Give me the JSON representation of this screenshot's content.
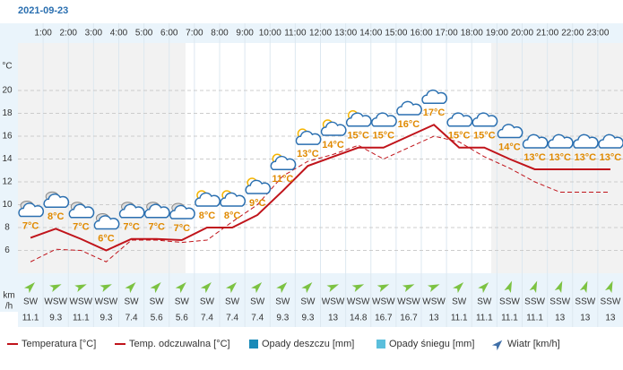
{
  "chart_data": {
    "type": "line",
    "date": "2021-09-23",
    "hour_labels": [
      "1:00",
      "2:00",
      "3:00",
      "4:00",
      "5:00",
      "6:00",
      "7:00",
      "8:00",
      "9:00",
      "10:00",
      "11:00",
      "12:00",
      "13:00",
      "14:00",
      "15:00",
      "16:00",
      "17:00",
      "18:00",
      "19:00",
      "20:00",
      "21:00",
      "22:00",
      "23:00"
    ],
    "ylabel": "°C",
    "ylim": [
      4,
      24
    ],
    "yticks": [
      6,
      8,
      10,
      12,
      14,
      16,
      18,
      20
    ],
    "grid": true,
    "series": [
      {
        "name": "Temperatura [°C]",
        "color": "#c0141b",
        "values": [
          7.1,
          7.9,
          7.0,
          6.0,
          7.0,
          7.0,
          6.9,
          8.0,
          8.0,
          9.1,
          11.2,
          13.4,
          14.2,
          15.0,
          15.0,
          16.0,
          17.0,
          15.0,
          15.0,
          14.0,
          13.1,
          13.1,
          13.1,
          13.1
        ],
        "value_labels": [
          "7°C",
          "8°C",
          "7°C",
          "6°C",
          "7°C",
          "7°C",
          "7°C",
          "8°C",
          "8°C",
          "9°C",
          "11°C",
          "13°C",
          "14°C",
          "15°C",
          "15°C",
          "16°C",
          "17°C",
          "15°C",
          "15°C",
          "14°C",
          "13°C",
          "13°C",
          "13°C",
          "13°C"
        ]
      },
      {
        "name": "Temp. odczuwalna [°C]",
        "color": "#c0141b",
        "dashed": true,
        "values": [
          5.0,
          6.1,
          6.0,
          5.0,
          6.9,
          6.9,
          6.7,
          6.9,
          8.5,
          10.0,
          12.5,
          13.8,
          14.4,
          15.2,
          14.0,
          15.0,
          16.0,
          15.5,
          14.2,
          13.2,
          12.0,
          11.1,
          11.1,
          11.1
        ]
      }
    ],
    "extra_legend": [
      {
        "name": "Opady deszczu [mm]",
        "color": "#1a8ab8"
      },
      {
        "name": "Opady śniegu [mm]",
        "color": "#5bbfdc"
      }
    ],
    "wind": {
      "name": "Wiatr [km/h]",
      "unit": [
        "km",
        "/h"
      ],
      "color": "#3f6fa8",
      "directions": [
        "SW",
        "WSW",
        "WSW",
        "WSW",
        "SW",
        "SW",
        "SW",
        "SW",
        "SW",
        "SW",
        "SW",
        "SW",
        "WSW",
        "WSW",
        "WSW",
        "WSW",
        "WSW",
        "SW",
        "SW",
        "SSW",
        "SSW",
        "SSW",
        "SSW",
        "SSW"
      ],
      "speeds": [
        11.1,
        9.3,
        11.1,
        9.3,
        7.4,
        5.6,
        5.6,
        7.4,
        7.4,
        7.4,
        9.3,
        9.3,
        13,
        14.8,
        16.7,
        16.7,
        13,
        11.1,
        11.1,
        11.1,
        11.1,
        13,
        13,
        13
      ]
    }
  }
}
